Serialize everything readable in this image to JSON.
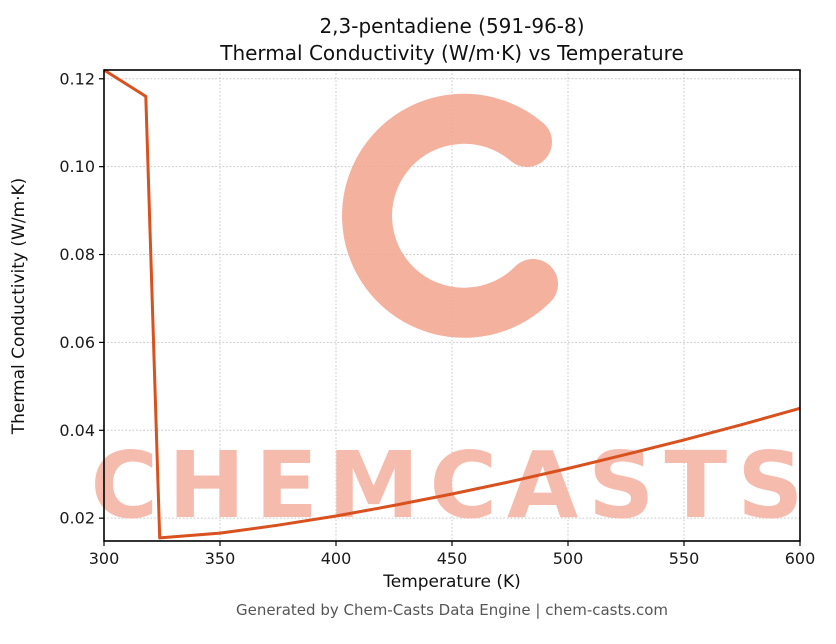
{
  "page": {
    "title_line1": "2,3-pentadiene (591-96-8)",
    "title_line2": "Thermal Conductivity (W/m·K) vs Temperature",
    "footer": "Generated by Chem-Casts Data Engine | chem-casts.com"
  },
  "watermark": {
    "text": "CHEMCASTS",
    "text_color": "#f5b9aa",
    "logo_color": "#f2a894"
  },
  "chart_data": {
    "type": "line",
    "title": "2,3-pentadiene (591-96-8)",
    "subtitle": "Thermal Conductivity (W/m·K) vs Temperature",
    "xlabel": "Temperature (K)",
    "ylabel": "Thermal Conductivity (W/m·K)",
    "xlim": [
      300,
      600
    ],
    "ylim": [
      0.0148,
      0.122
    ],
    "x_ticks": [
      300,
      350,
      400,
      450,
      500,
      550,
      600
    ],
    "x_tick_labels": [
      "300",
      "350",
      "400",
      "450",
      "500",
      "550",
      "600"
    ],
    "y_ticks": [
      0.02,
      0.04,
      0.06,
      0.08,
      0.1,
      0.12
    ],
    "y_tick_labels": [
      "0.02",
      "0.04",
      "0.06",
      "0.08",
      "0.10",
      "0.12"
    ],
    "grid": true,
    "legend": false,
    "line_color": "#d8511f",
    "line_width": 3,
    "series": [
      {
        "name": "thermal-conductivity",
        "x": [
          300,
          318,
          324,
          350,
          375,
          400,
          425,
          450,
          475,
          500,
          525,
          550,
          575,
          600
        ],
        "y": [
          0.122,
          0.116,
          0.0155,
          0.0166,
          0.0184,
          0.0205,
          0.0229,
          0.0255,
          0.0283,
          0.0313,
          0.0345,
          0.0378,
          0.0413,
          0.045
        ]
      }
    ]
  }
}
